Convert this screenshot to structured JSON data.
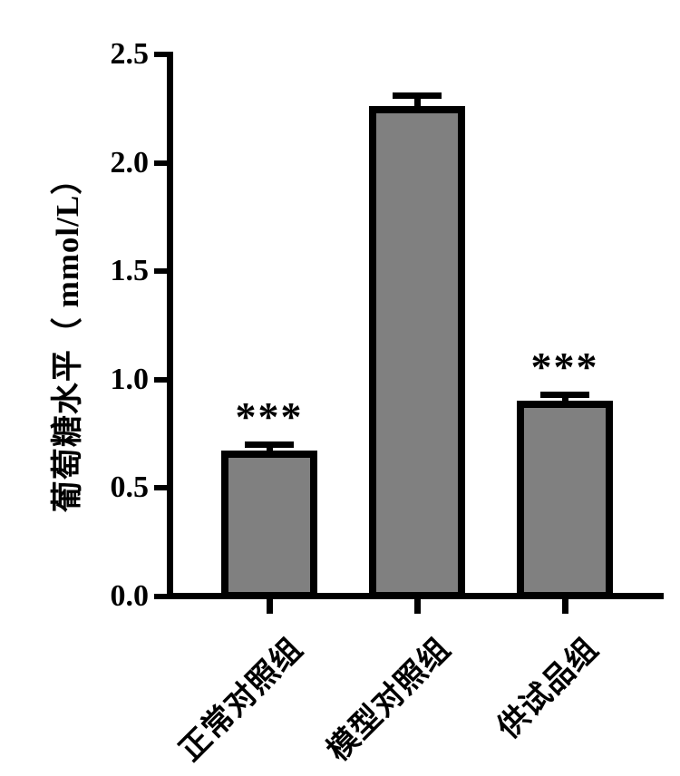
{
  "chart_data": {
    "type": "bar",
    "title": "",
    "ylabel": "葡萄糖水平（ mmol/L）",
    "xlabel": "",
    "categories": [
      "正常对照组",
      "模型对照组",
      "供试品组"
    ],
    "values": [
      0.67,
      2.26,
      0.9
    ],
    "error_bars": [
      0.03,
      0.05,
      0.03
    ],
    "significance": [
      "***",
      "",
      "***"
    ],
    "ytick_labels": [
      "0.0",
      "0.5",
      "1.0",
      "1.5",
      "2.0",
      "2.5"
    ],
    "ylim": [
      0.0,
      2.5
    ],
    "grid": false,
    "legend": "none",
    "bar_fill_color": "#808080",
    "bar_edge_color": "#000000",
    "text_color": "#000000",
    "background_color": "#ffffff"
  }
}
